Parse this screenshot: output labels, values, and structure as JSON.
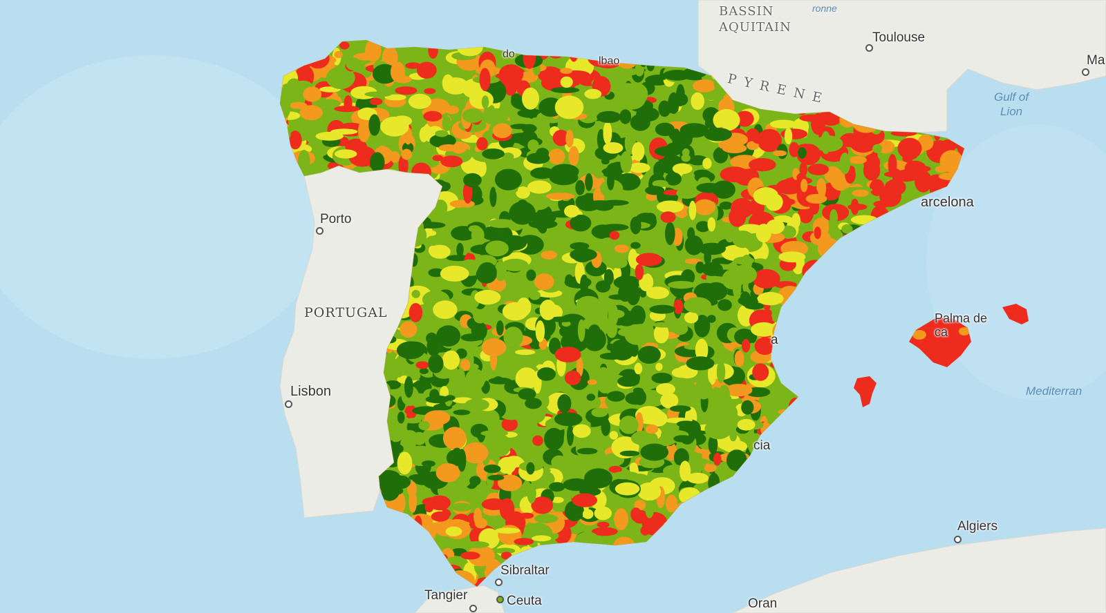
{
  "map": {
    "colors": {
      "sea": "#b9def0",
      "land": "#ecece6",
      "class_1": "#1f6e0a",
      "class_2": "#7cb518",
      "class_3": "#e8e82a",
      "class_4": "#f39a1e",
      "class_5": "#ee2c1d"
    },
    "labels": {
      "bassin_aquitain": "BASSIN\nAQUITAIN",
      "toulouse": "Toulouse",
      "ma": "Ma",
      "garonne": "ronne",
      "gulf_of_lion": "Gulf of\nLion",
      "pyrenees": "PYRENE",
      "barcelona": "arcelona",
      "porto": "Porto",
      "portugal": "PORTUGAL",
      "lisbon": "Lisbon",
      "palma": "Palma de\nca",
      "mediterranean": "Mediterran",
      "algiers": "Algiers",
      "gibraltar": "Sibraltar",
      "tangier": "Tangier",
      "ceuta": "Ceuta",
      "oran": "Oran",
      "valencia_frag": "a",
      "murcia_frag": "cia",
      "oviedo_frag": "do",
      "bilbao_frag": "lbao"
    }
  }
}
